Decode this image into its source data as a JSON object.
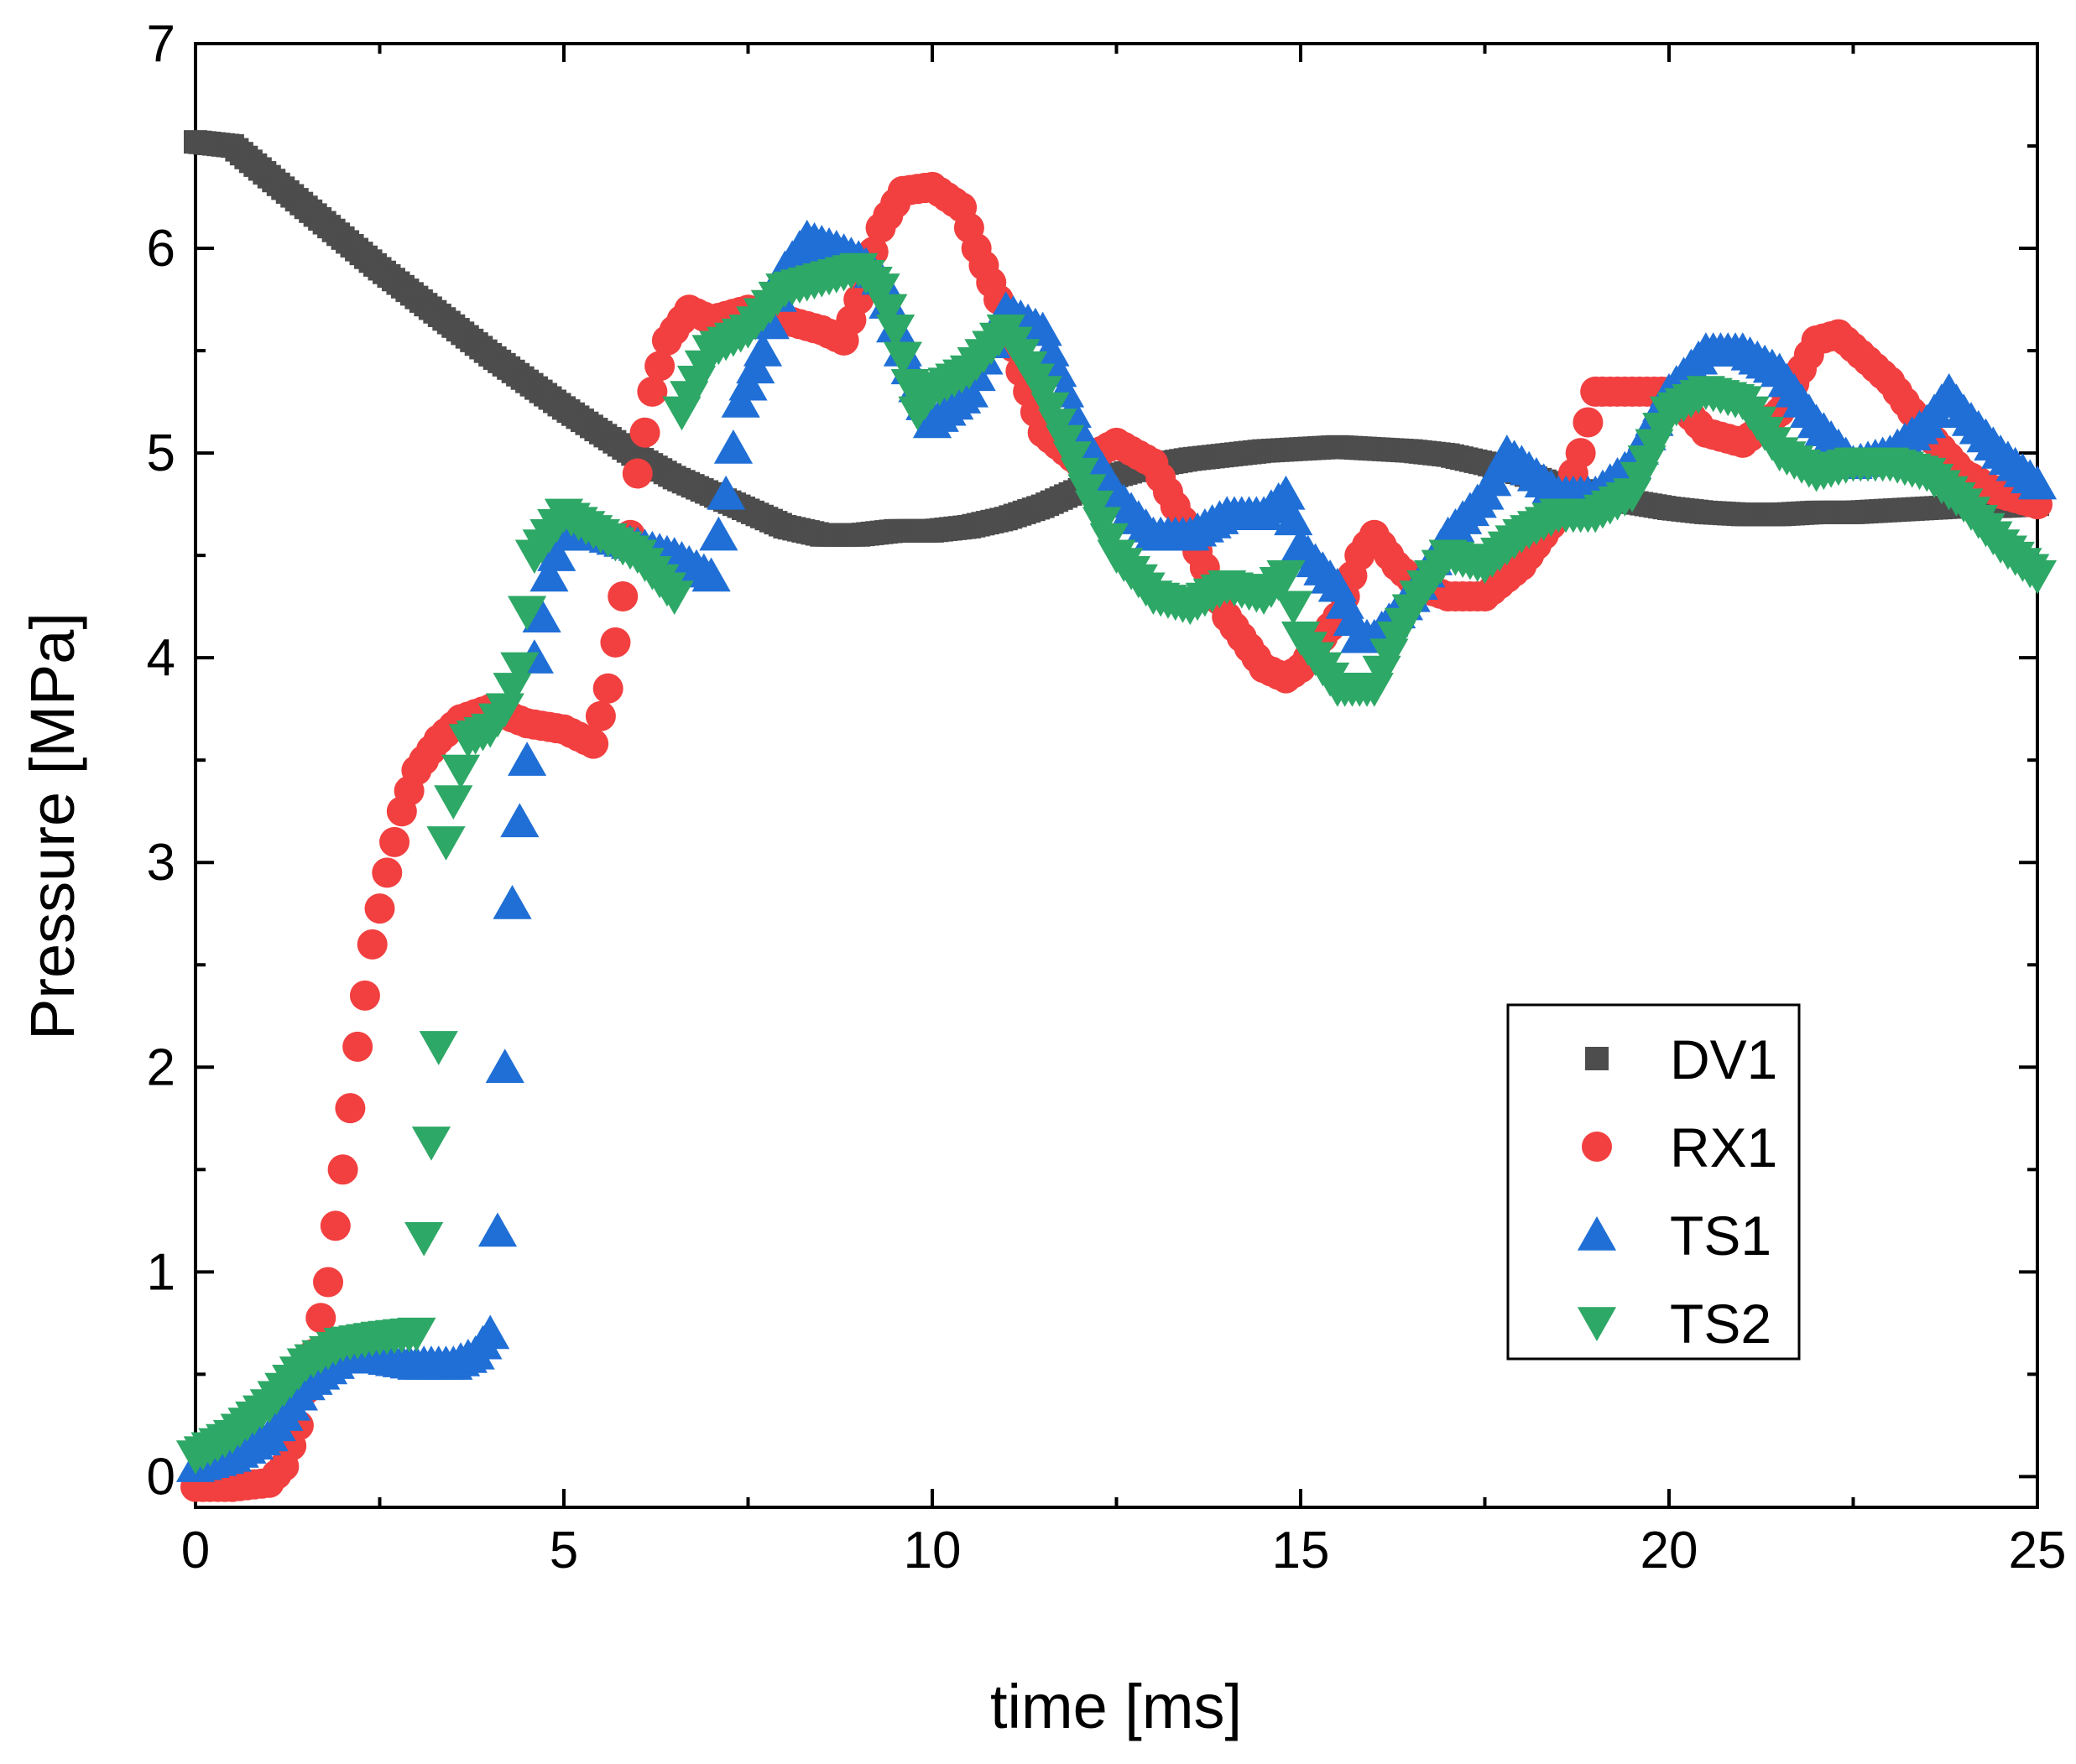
{
  "chart_data": {
    "type": "scatter",
    "title": "",
    "xlabel": "time [ms]",
    "ylabel": "Pressure [MPa]",
    "xlim": [
      0,
      25
    ],
    "ylim": [
      -0.15,
      7
    ],
    "xticks": [
      0,
      5,
      10,
      15,
      20,
      25
    ],
    "yticks": [
      0,
      1,
      2,
      3,
      4,
      5,
      6,
      7
    ],
    "grid": false,
    "legend_position": "bottom-right",
    "series": [
      {
        "name": "DV1",
        "marker": "square",
        "color": "#4d4d4d",
        "points": [
          [
            0,
            6.52
          ],
          [
            0.5,
            6.5
          ],
          [
            1,
            6.35
          ],
          [
            1.5,
            6.2
          ],
          [
            2,
            6.05
          ],
          [
            2.5,
            5.9
          ],
          [
            3,
            5.76
          ],
          [
            3.5,
            5.62
          ],
          [
            4,
            5.48
          ],
          [
            4.5,
            5.35
          ],
          [
            5,
            5.22
          ],
          [
            5.5,
            5.1
          ],
          [
            6,
            4.98
          ],
          [
            6.5,
            4.88
          ],
          [
            7,
            4.8
          ],
          [
            7.5,
            4.72
          ],
          [
            8,
            4.64
          ],
          [
            8.5,
            4.6
          ],
          [
            9,
            4.6
          ],
          [
            9.5,
            4.62
          ],
          [
            10,
            4.62
          ],
          [
            10.5,
            4.64
          ],
          [
            11,
            4.68
          ],
          [
            11.5,
            4.74
          ],
          [
            12,
            4.82
          ],
          [
            12.5,
            4.89
          ],
          [
            13,
            4.94
          ],
          [
            13.5,
            4.97
          ],
          [
            14,
            4.99
          ],
          [
            14.5,
            5.01
          ],
          [
            15,
            5.02
          ],
          [
            15.5,
            5.03
          ],
          [
            16,
            5.02
          ],
          [
            16.5,
            5.01
          ],
          [
            17,
            4.99
          ],
          [
            17.5,
            4.95
          ],
          [
            18,
            4.9
          ],
          [
            18.5,
            4.84
          ],
          [
            19,
            4.8
          ],
          [
            19.5,
            4.76
          ],
          [
            20,
            4.73
          ],
          [
            20.5,
            4.71
          ],
          [
            21,
            4.7
          ],
          [
            21.5,
            4.7
          ],
          [
            22,
            4.71
          ],
          [
            22.5,
            4.71
          ],
          [
            23,
            4.72
          ],
          [
            23.5,
            4.73
          ],
          [
            24,
            4.74
          ],
          [
            24.5,
            4.74
          ],
          [
            25,
            4.75
          ]
        ]
      },
      {
        "name": "RX1",
        "marker": "circle",
        "color": "#f23f3f",
        "points": [
          [
            0,
            -0.05
          ],
          [
            0.5,
            -0.05
          ],
          [
            1,
            -0.03
          ],
          [
            1.2,
            0.05
          ],
          [
            1.4,
            0.25
          ],
          [
            1.6,
            0.6
          ],
          [
            1.8,
            0.95
          ],
          [
            2,
            1.5
          ],
          [
            2.2,
            2.1
          ],
          [
            2.4,
            2.6
          ],
          [
            2.6,
            2.95
          ],
          [
            2.8,
            3.25
          ],
          [
            3,
            3.45
          ],
          [
            3.3,
            3.6
          ],
          [
            3.6,
            3.7
          ],
          [
            4,
            3.75
          ],
          [
            4.5,
            3.68
          ],
          [
            5,
            3.65
          ],
          [
            5.4,
            3.58
          ],
          [
            5.6,
            3.85
          ],
          [
            5.8,
            4.3
          ],
          [
            6,
            4.9
          ],
          [
            6.2,
            5.3
          ],
          [
            6.4,
            5.55
          ],
          [
            6.7,
            5.7
          ],
          [
            7,
            5.65
          ],
          [
            7.5,
            5.7
          ],
          [
            8,
            5.65
          ],
          [
            8.5,
            5.6
          ],
          [
            8.8,
            5.55
          ],
          [
            9,
            5.75
          ],
          [
            9.3,
            6.1
          ],
          [
            9.6,
            6.28
          ],
          [
            10,
            6.3
          ],
          [
            10.4,
            6.2
          ],
          [
            10.6,
            6.0
          ],
          [
            10.9,
            5.75
          ],
          [
            11.2,
            5.4
          ],
          [
            11.5,
            5.1
          ],
          [
            12,
            4.95
          ],
          [
            12.5,
            5.05
          ],
          [
            13,
            4.95
          ],
          [
            13.5,
            4.6
          ],
          [
            14,
            4.2
          ],
          [
            14.5,
            3.95
          ],
          [
            14.8,
            3.9
          ],
          [
            15,
            3.95
          ],
          [
            15.5,
            4.2
          ],
          [
            15.8,
            4.5
          ],
          [
            16,
            4.6
          ],
          [
            16.3,
            4.45
          ],
          [
            16.6,
            4.35
          ],
          [
            17,
            4.3
          ],
          [
            17.5,
            4.3
          ],
          [
            18,
            4.45
          ],
          [
            18.5,
            4.7
          ],
          [
            18.8,
            5.0
          ],
          [
            19,
            5.3
          ],
          [
            19.5,
            5.3
          ],
          [
            20,
            5.3
          ],
          [
            20.5,
            5.1
          ],
          [
            21,
            5.05
          ],
          [
            21.5,
            5.2
          ],
          [
            22,
            5.55
          ],
          [
            22.3,
            5.58
          ],
          [
            22.7,
            5.45
          ],
          [
            23,
            5.35
          ],
          [
            23.5,
            5.1
          ],
          [
            24,
            4.9
          ],
          [
            24.5,
            4.8
          ],
          [
            25,
            4.75
          ]
        ]
      },
      {
        "name": "TS1",
        "marker": "triangle-up",
        "color": "#1f6fd6",
        "points": [
          [
            0,
            0.05
          ],
          [
            0.5,
            0.1
          ],
          [
            1,
            0.2
          ],
          [
            1.5,
            0.45
          ],
          [
            2,
            0.58
          ],
          [
            2.5,
            0.58
          ],
          [
            3,
            0.55
          ],
          [
            3.5,
            0.55
          ],
          [
            3.8,
            0.6
          ],
          [
            4.0,
            0.7
          ],
          [
            4.1,
            1.2
          ],
          [
            4.2,
            2.0
          ],
          [
            4.3,
            2.8
          ],
          [
            4.4,
            3.2
          ],
          [
            4.5,
            3.5
          ],
          [
            4.6,
            4.0
          ],
          [
            4.8,
            4.4
          ],
          [
            5,
            4.6
          ],
          [
            5.5,
            4.6
          ],
          [
            6,
            4.55
          ],
          [
            6.5,
            4.5
          ],
          [
            7,
            4.4
          ],
          [
            7.2,
            4.8
          ],
          [
            7.4,
            5.25
          ],
          [
            7.7,
            5.5
          ],
          [
            8,
            5.9
          ],
          [
            8.3,
            6.05
          ],
          [
            8.7,
            6.0
          ],
          [
            9,
            5.95
          ],
          [
            9.3,
            5.85
          ],
          [
            9.6,
            5.5
          ],
          [
            10,
            5.15
          ],
          [
            10.5,
            5.3
          ],
          [
            11,
            5.7
          ],
          [
            11.5,
            5.6
          ],
          [
            12,
            5.1
          ],
          [
            12.5,
            4.8
          ],
          [
            13,
            4.6
          ],
          [
            13.5,
            4.6
          ],
          [
            14,
            4.7
          ],
          [
            14.5,
            4.7
          ],
          [
            14.8,
            4.8
          ],
          [
            15,
            4.55
          ],
          [
            15.5,
            4.35
          ],
          [
            15.8,
            4.1
          ],
          [
            16,
            4.1
          ],
          [
            16.5,
            4.3
          ],
          [
            17,
            4.6
          ],
          [
            17.5,
            4.8
          ],
          [
            17.8,
            5.0
          ],
          [
            18,
            4.95
          ],
          [
            18.5,
            4.8
          ],
          [
            19,
            4.8
          ],
          [
            19.5,
            4.95
          ],
          [
            20,
            5.3
          ],
          [
            20.5,
            5.5
          ],
          [
            21,
            5.5
          ],
          [
            21.5,
            5.4
          ],
          [
            22,
            5.15
          ],
          [
            22.5,
            4.95
          ],
          [
            23,
            5.0
          ],
          [
            23.5,
            5.15
          ],
          [
            23.8,
            5.3
          ],
          [
            24,
            5.2
          ],
          [
            24.5,
            5.0
          ],
          [
            25,
            4.85
          ]
        ]
      },
      {
        "name": "TS2",
        "marker": "triangle-down",
        "color": "#2ea866",
        "points": [
          [
            0,
            0.1
          ],
          [
            0.5,
            0.2
          ],
          [
            1,
            0.35
          ],
          [
            1.5,
            0.55
          ],
          [
            2,
            0.65
          ],
          [
            2.5,
            0.68
          ],
          [
            3,
            0.7
          ],
          [
            3.3,
            2.1
          ],
          [
            3.4,
            3.1
          ],
          [
            3.5,
            3.3
          ],
          [
            3.7,
            3.6
          ],
          [
            4,
            3.65
          ],
          [
            4.2,
            3.75
          ],
          [
            4.4,
            3.95
          ],
          [
            4.6,
            4.5
          ],
          [
            5,
            4.7
          ],
          [
            5.5,
            4.6
          ],
          [
            6,
            4.5
          ],
          [
            6.5,
            4.3
          ],
          [
            6.6,
            5.2
          ],
          [
            7,
            5.5
          ],
          [
            7.5,
            5.6
          ],
          [
            8,
            5.8
          ],
          [
            8.5,
            5.85
          ],
          [
            9,
            5.9
          ],
          [
            9.3,
            5.8
          ],
          [
            9.5,
            5.6
          ],
          [
            9.8,
            5.2
          ],
          [
            10,
            5.3
          ],
          [
            10.5,
            5.4
          ],
          [
            11,
            5.6
          ],
          [
            11.5,
            5.3
          ],
          [
            12,
            4.9
          ],
          [
            12.5,
            4.5
          ],
          [
            13,
            4.3
          ],
          [
            13.5,
            4.25
          ],
          [
            14,
            4.35
          ],
          [
            14.5,
            4.3
          ],
          [
            14.8,
            4.4
          ],
          [
            15,
            4.1
          ],
          [
            15.5,
            3.85
          ],
          [
            16,
            3.85
          ],
          [
            16.3,
            4.1
          ],
          [
            16.6,
            4.3
          ],
          [
            17,
            4.5
          ],
          [
            17.5,
            4.45
          ],
          [
            18,
            4.6
          ],
          [
            18.5,
            4.7
          ],
          [
            19,
            4.7
          ],
          [
            19.5,
            4.8
          ],
          [
            20,
            5.2
          ],
          [
            20.5,
            5.3
          ],
          [
            21,
            5.25
          ],
          [
            21.5,
            5.0
          ],
          [
            22,
            4.9
          ],
          [
            22.5,
            4.95
          ],
          [
            23,
            4.95
          ],
          [
            23.5,
            4.9
          ],
          [
            24,
            4.75
          ],
          [
            24.5,
            4.55
          ],
          [
            25,
            4.4
          ]
        ]
      }
    ]
  }
}
